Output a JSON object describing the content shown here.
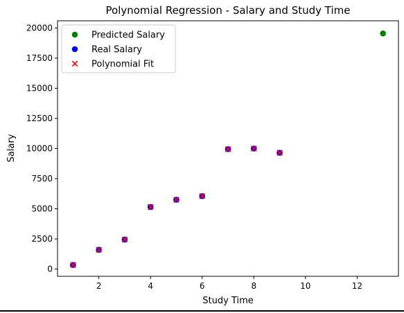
{
  "chart_data": {
    "type": "scatter",
    "title": "Polynomial Regression - Salary and Study Time",
    "xlabel": "Study Time",
    "ylabel": "Salary",
    "xlim": [
      0.4,
      13.6
    ],
    "ylim": [
      -600,
      20600
    ],
    "xticks": [
      2,
      4,
      6,
      8,
      10,
      12
    ],
    "xtick_labels": [
      "2",
      "4",
      "6",
      "8",
      "10",
      "12"
    ],
    "yticks": [
      0,
      2500,
      5000,
      7500,
      10000,
      12500,
      15000,
      17500,
      20000
    ],
    "ytick_labels": [
      "0",
      "2500",
      "5000",
      "7500",
      "10000",
      "12500",
      "15000",
      "17500",
      "20000"
    ],
    "grid": false,
    "legend_position": "top-left",
    "series": [
      {
        "name": "Predicted Salary",
        "marker": "circle",
        "color": "#008000",
        "x": [
          13
        ],
        "y": [
          19550
        ]
      },
      {
        "name": "Real Salary",
        "marker": "circle",
        "color": "#0000ff",
        "x": [
          1,
          2,
          3,
          4,
          5,
          6,
          7,
          8,
          9
        ],
        "y": [
          340,
          1600,
          2450,
          5150,
          5750,
          6050,
          9950,
          10000,
          9650
        ]
      },
      {
        "name": "Polynomial Fit",
        "marker": "x",
        "color": "#ff0000",
        "x": [
          1,
          2,
          3,
          4,
          5,
          6,
          7,
          8,
          9
        ],
        "y": [
          340,
          1600,
          2450,
          5150,
          5750,
          6050,
          9950,
          10000,
          9650
        ]
      }
    ]
  }
}
